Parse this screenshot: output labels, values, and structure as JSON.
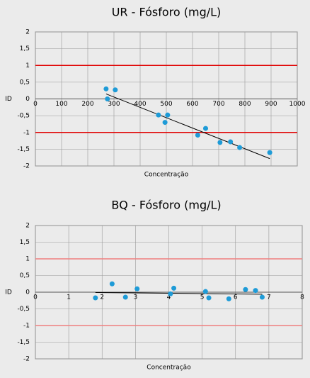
{
  "chart_data": [
    {
      "type": "scatter",
      "title": "UR - Fósforo (mg/L)",
      "x_label": "Concentração",
      "y_label": "ID",
      "xlim": [
        0,
        1000
      ],
      "xticks": [
        0,
        100,
        200,
        300,
        400,
        500,
        600,
        700,
        800,
        900,
        1000
      ],
      "ylim": [
        -2,
        2
      ],
      "yticks": [
        -2,
        {
          "value": -1.5,
          "label": "-1,5"
        },
        -1,
        {
          "value": -0.5,
          "label": "-0,5"
        },
        0,
        {
          "value": 0.5,
          "label": "0,5"
        },
        1,
        {
          "value": 1.5,
          "label": "1,5"
        },
        2
      ],
      "grid": true,
      "limits": [
        1,
        -1
      ],
      "limit_color": "#e00000",
      "points": {
        "color": "#1e9bd7",
        "x": [
          270,
          275,
          305,
          470,
          495,
          505,
          620,
          650,
          705,
          745,
          780,
          895
        ],
        "y": [
          0.3,
          0.0,
          0.27,
          -0.48,
          -0.7,
          -0.48,
          -1.08,
          -0.88,
          -1.3,
          -1.28,
          -1.45,
          -1.6
        ]
      },
      "trendline": {
        "color": "#000000",
        "x": [
          270,
          895
        ],
        "y": [
          0.15,
          -1.78
        ]
      }
    },
    {
      "type": "scatter",
      "title": "BQ - Fósforo (mg/L)",
      "x_label": "Concentração",
      "y_label": "ID",
      "xlim": [
        0,
        8
      ],
      "xticks": [
        0,
        1,
        2,
        3,
        4,
        5,
        6,
        7,
        8
      ],
      "ylim": [
        -2,
        2
      ],
      "yticks": [
        -2,
        {
          "value": -1.5,
          "label": "-1,5"
        },
        -1,
        {
          "value": -0.5,
          "label": "-0,5"
        },
        0,
        {
          "value": 0.5,
          "label": "0,5"
        },
        1,
        {
          "value": 1.5,
          "label": "1,5"
        },
        2
      ],
      "grid": true,
      "limits": [
        1,
        -1
      ],
      "limit_color": "#f08080",
      "points": {
        "color": "#1e9bd7",
        "x": [
          1.8,
          2.3,
          2.7,
          3.05,
          4.05,
          4.15,
          5.1,
          5.2,
          5.8,
          6.3,
          6.6,
          6.8
        ],
        "y": [
          -0.17,
          0.25,
          -0.15,
          0.1,
          -0.05,
          0.12,
          0.02,
          -0.17,
          -0.2,
          0.08,
          0.05,
          -0.15
        ]
      },
      "trendline": {
        "color": "#000000",
        "x": [
          1.8,
          6.8
        ],
        "y": [
          -0.01,
          -0.06
        ]
      }
    }
  ]
}
